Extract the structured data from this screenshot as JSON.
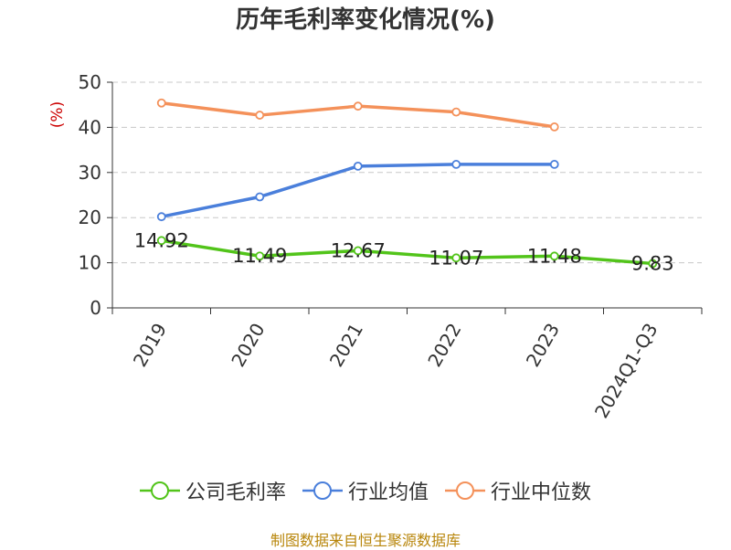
{
  "source": "制图数据来自恒生聚源数据库",
  "colors": {
    "company": "#52c41a",
    "industry_avg": "#4a7fdb",
    "industry_median": "#f4915a",
    "ylabel": "#cc0000",
    "source": "#b8860b"
  },
  "chart_data": {
    "type": "line",
    "title": "历年毛利率变化情况(%)",
    "ylabel": "(%)",
    "xlabel": "",
    "categories": [
      "2019",
      "2020",
      "2021",
      "2022",
      "2023",
      "2024Q1-Q3"
    ],
    "ylim": [
      0,
      50
    ],
    "yticks": [
      0,
      10,
      20,
      30,
      40,
      50
    ],
    "grid": true,
    "legend_position": "bottom",
    "series": [
      {
        "name": "公司毛利率",
        "values": [
          14.92,
          11.49,
          12.67,
          11.07,
          11.48,
          9.83
        ],
        "labels": [
          "14.92",
          "11.49",
          "12.67",
          "11.07",
          "11.48",
          "9.83"
        ]
      },
      {
        "name": "行业均值",
        "values": [
          20.2,
          24.6,
          31.4,
          31.8,
          31.8,
          null
        ]
      },
      {
        "name": "行业中位数",
        "values": [
          45.4,
          42.7,
          44.7,
          43.4,
          40.1,
          null
        ]
      }
    ]
  }
}
